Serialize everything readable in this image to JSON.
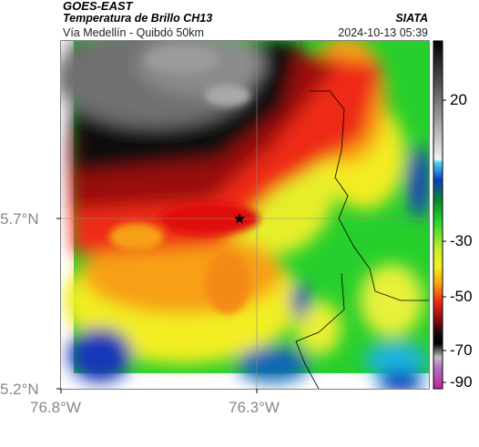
{
  "header": {
    "satellite": "GOES-EAST",
    "product": "Temperatura de Brillo CH13",
    "brand": "SIATA",
    "location": "Vía Medellín - Quibdó 50km",
    "datetime": "2024-10-13 05:39"
  },
  "axes": {
    "lat_ticks": [
      "5.7°N",
      "5.2°N"
    ],
    "lon_ticks": [
      "76.8°W",
      "76.3°W"
    ]
  },
  "marker": {
    "name": "star"
  },
  "colorbar": {
    "ticks": [
      "20",
      "-30",
      "-50",
      "-70",
      "-90"
    ],
    "range": [
      -95,
      35
    ]
  },
  "colors": {
    "gray_top": "#6e6e6e",
    "black": "#0a0a0a",
    "red": "#e8141a",
    "orange": "#f97a10",
    "yellow": "#f3ef22",
    "green": "#28d22e",
    "blue": "#1245c0",
    "cyan": "#1fb8de"
  }
}
